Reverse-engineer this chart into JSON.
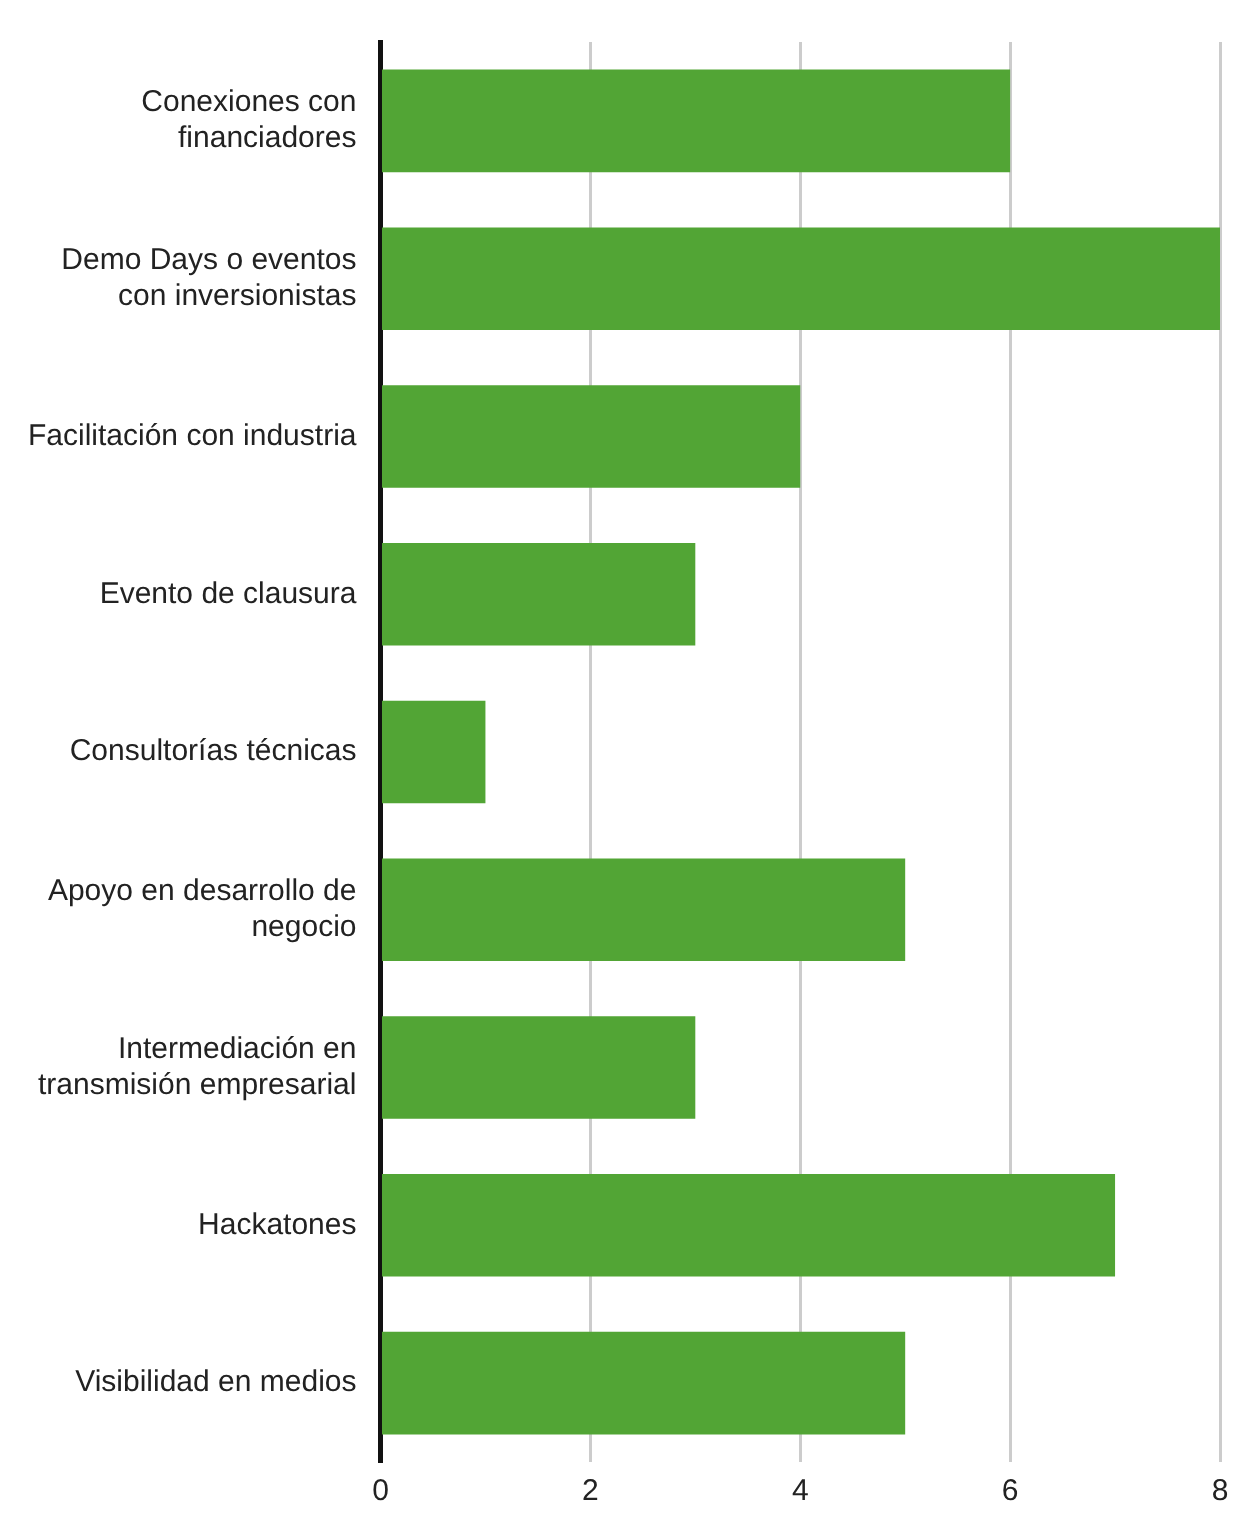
{
  "chart_data": {
    "type": "bar",
    "orientation": "horizontal",
    "categories": [
      "Conexiones con financiadores",
      "Demo Days o eventos con inversionistas",
      "Facilitación con industria",
      "Evento de clausura",
      "Consultorías técnicas",
      "Apoyo en desarrollo de negocio",
      "Intermediación en transmisión empresarial",
      "Hackatones",
      "Visibilidad en medios"
    ],
    "values": [
      6,
      8,
      4,
      3,
      1,
      5,
      3,
      7,
      5
    ],
    "color": "#52a535",
    "xlim": [
      0,
      8
    ],
    "xticks": [
      0,
      2,
      4,
      6,
      8
    ],
    "grid": "x",
    "legend": false
  }
}
